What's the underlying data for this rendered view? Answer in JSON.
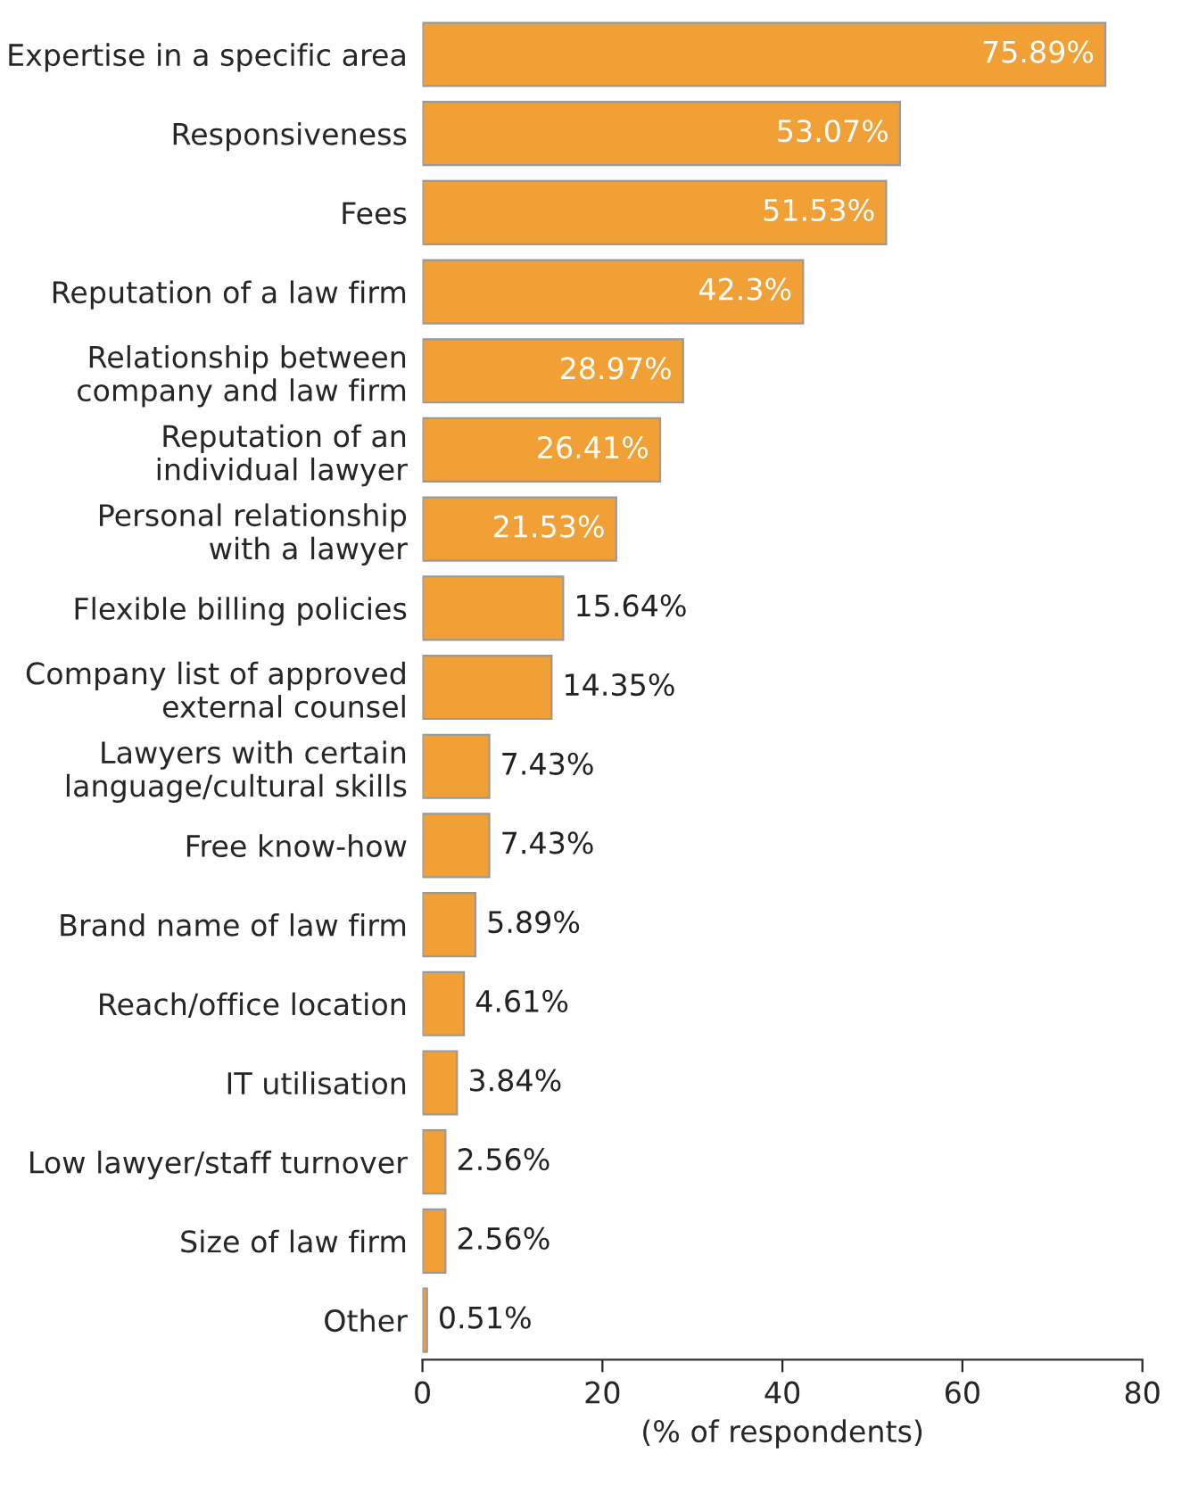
{
  "chart_data": {
    "type": "bar",
    "orientation": "horizontal",
    "xlabel": "(% of respondents)",
    "categories": [
      "Expertise in a specific area",
      "Responsiveness",
      "Fees",
      "Reputation of a law firm",
      "Relationship between\ncompany and law firm",
      "Reputation of an\nindividual lawyer",
      "Personal relationship\nwith a lawyer",
      "Flexible billing policies",
      "Company list of approved\nexternal counsel",
      "Lawyers with certain\nlanguage/cultural skills",
      "Free know-how",
      "Brand name of law firm",
      "Reach/office location",
      "IT utilisation",
      "Low lawyer/staff turnover",
      "Size of law firm",
      "Other"
    ],
    "values": [
      75.89,
      53.07,
      51.53,
      42.3,
      28.97,
      26.41,
      21.53,
      15.64,
      14.35,
      7.43,
      7.43,
      5.89,
      4.61,
      3.84,
      2.56,
      2.56,
      0.51
    ],
    "value_labels": [
      "75.89%",
      "53.07%",
      "51.53%",
      "42.3%",
      "28.97%",
      "26.41%",
      "21.53%",
      "15.64%",
      "14.35%",
      "7.43%",
      "7.43%",
      "5.89%",
      "4.61%",
      "3.84%",
      "2.56%",
      "2.56%",
      "0.51%"
    ],
    "color": "#f0a035",
    "xlim": [
      0,
      80
    ],
    "xticks": [
      0,
      20,
      40,
      60,
      80
    ],
    "grid": false,
    "legend": false
  }
}
